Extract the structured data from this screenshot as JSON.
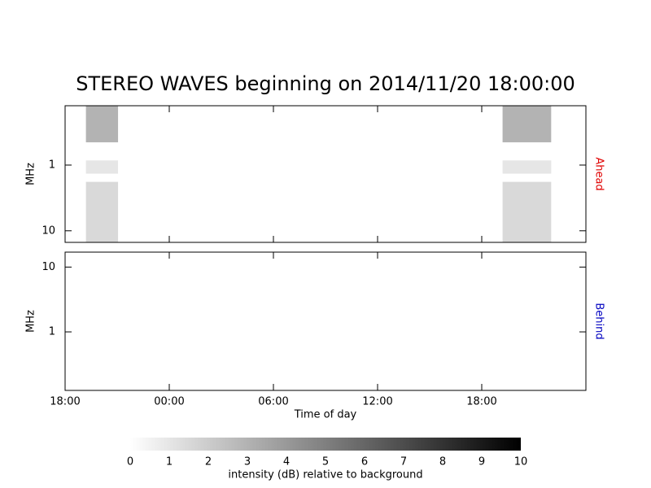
{
  "chart_data": {
    "type": "spectrogram",
    "title": "STEREO WAVES beginning on 2014/11/20 18:00:00",
    "x_label": "Time of day",
    "xlim": [
      0,
      30
    ],
    "xticks": [
      {
        "value": 0,
        "label": "18:00"
      },
      {
        "value": 6,
        "label": "00:00"
      },
      {
        "value": 12,
        "label": "06:00"
      },
      {
        "value": 18,
        "label": "12:00"
      },
      {
        "value": 24,
        "label": "18:00"
      }
    ],
    "panels": [
      {
        "name": "Ahead",
        "color": "#e00000",
        "y_label": "MHz",
        "log_y": true,
        "y_inverted": true,
        "ylim": [
          0.125,
          15
        ],
        "yticks": [
          1,
          10
        ],
        "bursts": [
          {
            "x": [
              1.2,
              3.05
            ],
            "y": [
              0.125,
              0.45
            ],
            "value": 3
          },
          {
            "x": [
              1.2,
              3.05
            ],
            "y": [
              0.85,
              1.35
            ],
            "value": 1
          },
          {
            "x": [
              1.2,
              3.05
            ],
            "y": [
              1.8,
              15
            ],
            "value": 1.5
          },
          {
            "x": [
              25.2,
              28.0
            ],
            "y": [
              0.125,
              0.45
            ],
            "value": 3
          },
          {
            "x": [
              25.2,
              28.0
            ],
            "y": [
              0.85,
              1.35
            ],
            "value": 1
          },
          {
            "x": [
              25.2,
              28.0
            ],
            "y": [
              1.8,
              15
            ],
            "value": 1.5
          }
        ]
      },
      {
        "name": "Behind",
        "color": "#0000c0",
        "y_label": "MHz",
        "log_y": true,
        "y_inverted": false,
        "ylim": [
          0.125,
          17
        ],
        "yticks": [
          1,
          10
        ]
      }
    ],
    "colorbar": {
      "label": "intensity (dB) relative to background",
      "lim": [
        0,
        10
      ],
      "ticks": [
        0,
        1,
        2,
        3,
        4,
        5,
        6,
        7,
        8,
        9,
        10
      ],
      "colors": [
        "#ffffff",
        "#000000"
      ]
    }
  }
}
